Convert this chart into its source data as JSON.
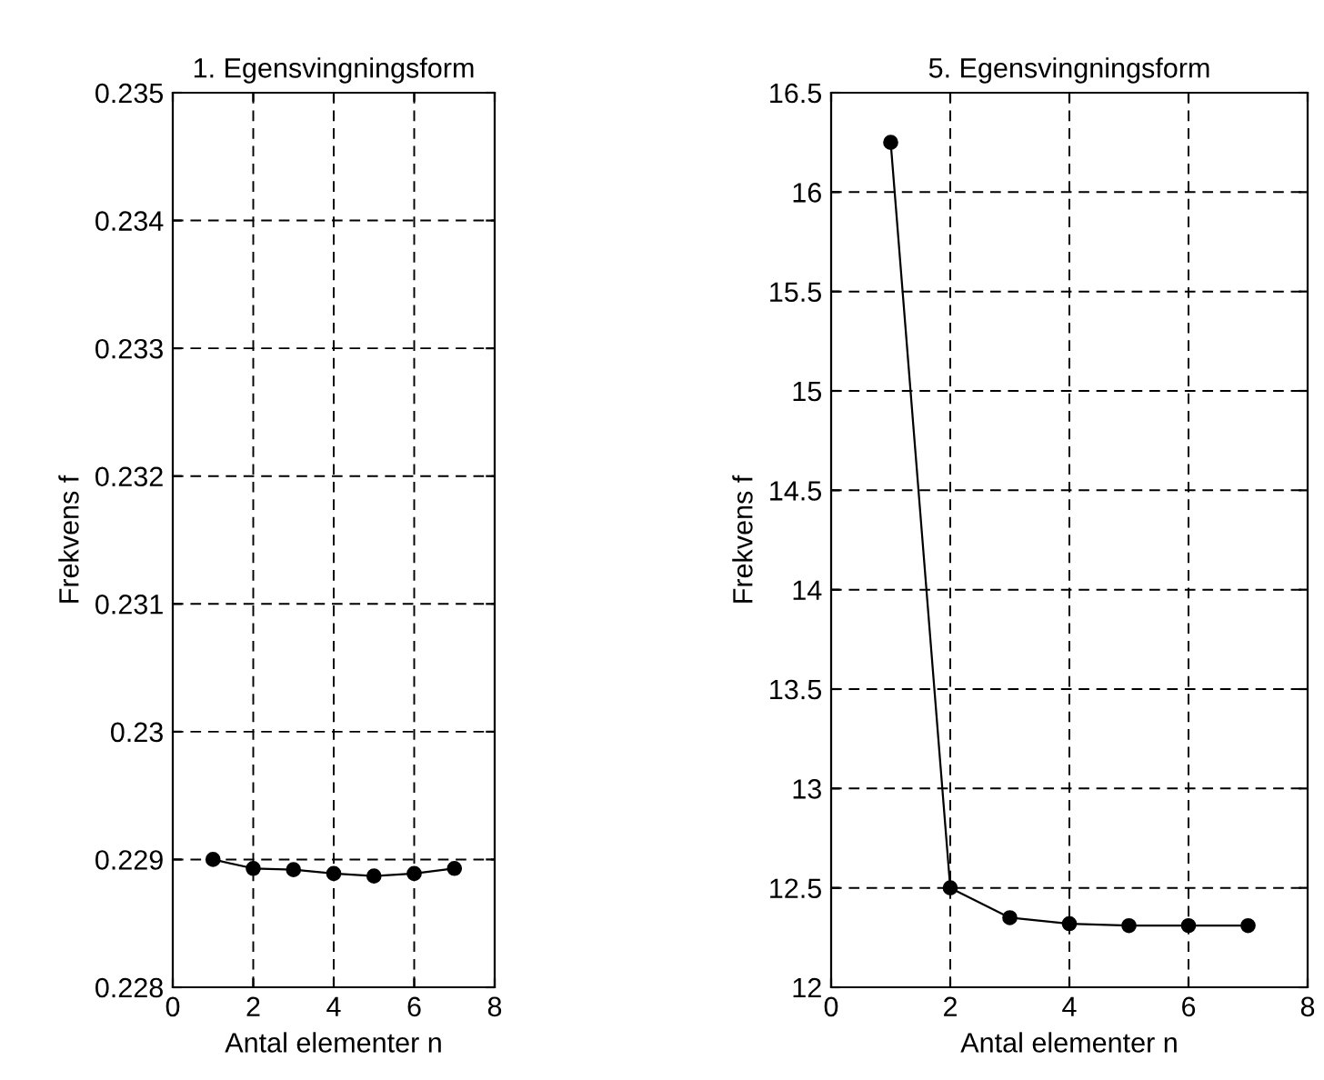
{
  "chart_data": [
    {
      "type": "line",
      "title": "1. Egensvingningsform",
      "xlabel": "Antal elementer n",
      "ylabel": "Frekvens f",
      "x": [
        1,
        2,
        3,
        4,
        5,
        6,
        7
      ],
      "series": [
        {
          "color": "#000000",
          "values": [
            0.229,
            0.22893,
            0.22892,
            0.22889,
            0.22887,
            0.22889,
            0.22893
          ]
        }
      ],
      "xlim": [
        0,
        8
      ],
      "xticks": [
        0,
        2,
        4,
        6,
        8
      ],
      "ylim": [
        0.228,
        0.235
      ],
      "yticks": [
        0.228,
        0.229,
        0.23,
        0.231,
        0.232,
        0.233,
        0.234,
        0.235
      ],
      "grid": true,
      "marker": "circle",
      "line_style": "solid"
    },
    {
      "type": "line",
      "title": "5. Egensvingningsform",
      "xlabel": "Antal elementer n",
      "ylabel": "Frekvens f",
      "x": [
        1,
        2,
        3,
        4,
        5,
        6,
        7
      ],
      "series": [
        {
          "color": "#000000",
          "values": [
            16.25,
            12.5,
            12.35,
            12.32,
            12.31,
            12.31,
            12.31
          ]
        }
      ],
      "xlim": [
        0,
        8
      ],
      "xticks": [
        0,
        2,
        4,
        6,
        8
      ],
      "ylim": [
        12,
        16.5
      ],
      "yticks": [
        12,
        12.5,
        13,
        13.5,
        14,
        14.5,
        15,
        15.5,
        16,
        16.5
      ],
      "grid": true,
      "marker": "circle",
      "line_style": "solid"
    }
  ]
}
